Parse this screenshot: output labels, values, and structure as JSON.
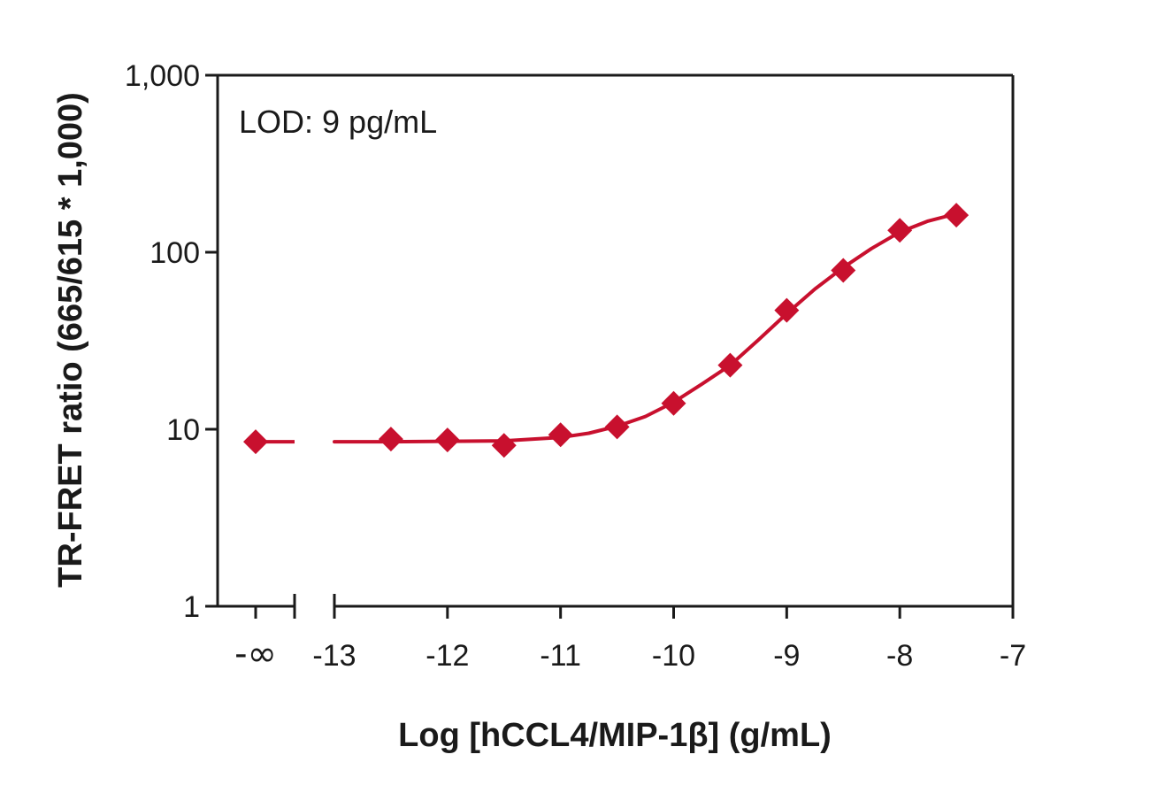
{
  "chart_data": {
    "type": "scatter",
    "title": "",
    "xlabel": "Log [hCCL4/MIP-1β] (g/mL)",
    "ylabel": "TR-FRET ratio (665/615 * 1,000)",
    "annotation": "LOD: 9 pg/mL",
    "yscale": "log",
    "ylim": [
      1,
      1000
    ],
    "yticks": [
      1,
      10,
      100,
      1000
    ],
    "ytick_labels": [
      "1",
      "10",
      "100",
      "1,000"
    ],
    "xlim": [
      -13,
      -7
    ],
    "xticks": [
      -13,
      -12,
      -11,
      -10,
      -9,
      -8,
      -7
    ],
    "xtick_labels": [
      "-13",
      "-12",
      "-11",
      "-10",
      "-9",
      "-8",
      "-7"
    ],
    "x_break_label": "-∞",
    "blank_point": {
      "x": "-∞",
      "y": 8.5
    },
    "color": "#c8102e",
    "series": [
      {
        "x": [
          -12.5,
          -12,
          -11.5,
          -11,
          -10.5,
          -10,
          -9.5,
          -9,
          -8.5,
          -8,
          -7.5
        ],
        "y": [
          8.8,
          8.7,
          8.1,
          9.3,
          10.3,
          14.0,
          23.0,
          47.0,
          79.0,
          133.0,
          162.0
        ]
      }
    ],
    "curve": {
      "x": [
        -13,
        -12.5,
        -12,
        -11.5,
        -11,
        -10.75,
        -10.5,
        -10.25,
        -10,
        -9.75,
        -9.5,
        -9.25,
        -9,
        -8.75,
        -8.5,
        -8.25,
        -8,
        -7.75,
        -7.5
      ],
      "y": [
        8.5,
        8.5,
        8.55,
        8.6,
        9.0,
        9.5,
        10.4,
        11.8,
        14.2,
        18.0,
        23.0,
        32.0,
        45.0,
        62.0,
        82.0,
        105.0,
        130.0,
        150.0,
        165.0
      ]
    },
    "baseline_curve": {
      "x": [
        "-∞",
        "break"
      ],
      "y": [
        8.5,
        8.5
      ]
    }
  }
}
